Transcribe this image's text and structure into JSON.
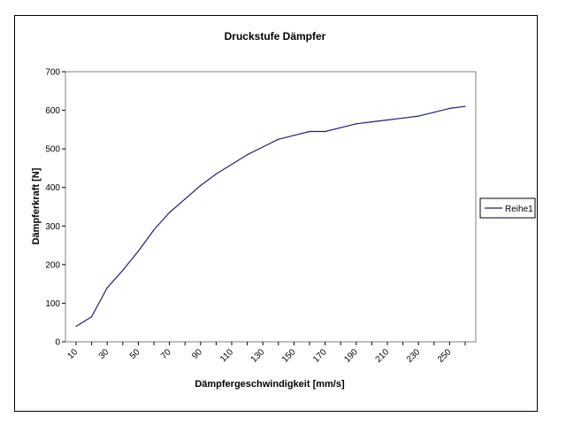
{
  "chart_data": {
    "type": "line",
    "title": "Druckstufe Dämpfer",
    "xlabel": "Dämpfergeschwindigkeit [mm/s]",
    "ylabel": "Dämpferkraft [N]",
    "x_tick_labels": [
      "10",
      "30",
      "50",
      "70",
      "90",
      "110",
      "130",
      "150",
      "170",
      "190",
      "210",
      "230",
      "250"
    ],
    "x": [
      10,
      20,
      30,
      40,
      50,
      60,
      70,
      80,
      90,
      100,
      110,
      120,
      130,
      140,
      150,
      160,
      170,
      180,
      190,
      200,
      210,
      220,
      230,
      240,
      250,
      260
    ],
    "xlim": [
      10,
      260
    ],
    "ylim": [
      0,
      700
    ],
    "y_ticks": [
      0,
      100,
      200,
      300,
      400,
      500,
      600,
      700
    ],
    "grid": false,
    "legend_position": "right",
    "series": [
      {
        "name": "Reihe1",
        "color": "#1f1f7a",
        "values": [
          40,
          65,
          140,
          185,
          235,
          290,
          335,
          370,
          405,
          435,
          460,
          485,
          505,
          525,
          535,
          545,
          545,
          555,
          565,
          570,
          575,
          580,
          585,
          595,
          605,
          610
        ]
      }
    ]
  }
}
